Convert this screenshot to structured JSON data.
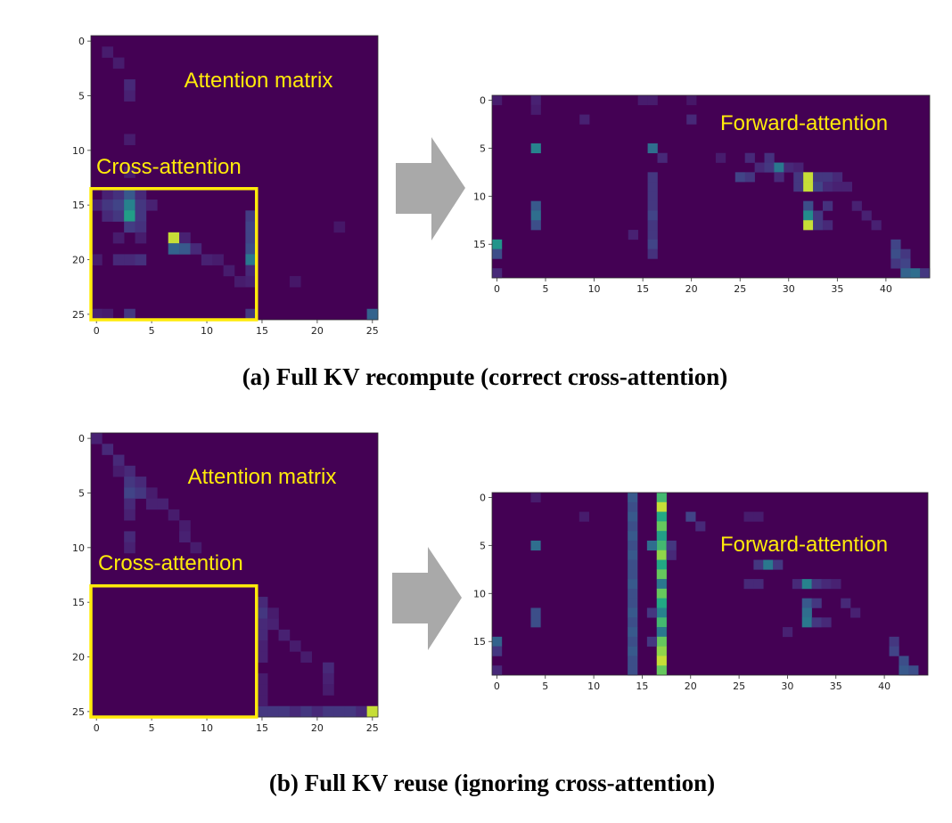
{
  "colors": {
    "background": "#440154",
    "highlight_box": "#ffeb0a",
    "overlay_text": "#ffeb0a",
    "arrow": "#a9a9a9",
    "colormap": "viridis"
  },
  "chart_data": [
    {
      "id": "a-attention-matrix",
      "type": "heatmap",
      "label": "Attention matrix",
      "box_label": "Cross-attention",
      "rows": 26,
      "cols": 26,
      "xticks": [
        0,
        5,
        10,
        15,
        20,
        25
      ],
      "yticks": [
        0,
        5,
        10,
        15,
        20,
        25
      ],
      "box": {
        "x0": 0,
        "x1": 14,
        "y0": 14,
        "y1": 25
      },
      "cells": [
        [
          1,
          1,
          0.1
        ],
        [
          2,
          2,
          0.1
        ],
        [
          3,
          4,
          0.15
        ],
        [
          3,
          5,
          0.12
        ],
        [
          3,
          9,
          0.1
        ],
        [
          3,
          12,
          0.1
        ],
        [
          1,
          14,
          0.12
        ],
        [
          2,
          14,
          0.18
        ],
        [
          3,
          14,
          0.35
        ],
        [
          4,
          14,
          0.15
        ],
        [
          0,
          15,
          0.12
        ],
        [
          1,
          15,
          0.2
        ],
        [
          2,
          15,
          0.25
        ],
        [
          3,
          15,
          0.55
        ],
        [
          4,
          15,
          0.2
        ],
        [
          5,
          15,
          0.12
        ],
        [
          1,
          16,
          0.15
        ],
        [
          2,
          16,
          0.2
        ],
        [
          3,
          16,
          0.7
        ],
        [
          4,
          16,
          0.2
        ],
        [
          3,
          17,
          0.22
        ],
        [
          4,
          17,
          0.18
        ],
        [
          2,
          18,
          0.1
        ],
        [
          4,
          18,
          0.1
        ],
        [
          7,
          18,
          0.95
        ],
        [
          8,
          18,
          0.12
        ],
        [
          14,
          18,
          0.25
        ],
        [
          7,
          19,
          0.4
        ],
        [
          8,
          19,
          0.35
        ],
        [
          9,
          19,
          0.15
        ],
        [
          14,
          19,
          0.3
        ],
        [
          0,
          20,
          0.1
        ],
        [
          2,
          20,
          0.15
        ],
        [
          3,
          20,
          0.15
        ],
        [
          4,
          20,
          0.18
        ],
        [
          10,
          20,
          0.12
        ],
        [
          11,
          20,
          0.1
        ],
        [
          14,
          20,
          0.5
        ],
        [
          12,
          21,
          0.1
        ],
        [
          14,
          21,
          0.15
        ],
        [
          13,
          22,
          0.1
        ],
        [
          14,
          22,
          0.12
        ],
        [
          0,
          25,
          0.12
        ],
        [
          1,
          25,
          0.1
        ],
        [
          3,
          25,
          0.2
        ],
        [
          14,
          25,
          0.2
        ],
        [
          25,
          25,
          0.4
        ],
        [
          14,
          16,
          0.22
        ],
        [
          14,
          17,
          0.25
        ],
        [
          22,
          17,
          0.08
        ],
        [
          18,
          22,
          0.08
        ]
      ]
    },
    {
      "id": "a-forward-attention",
      "type": "heatmap",
      "label": "Forward-attention",
      "rows": 19,
      "cols": 45,
      "xticks": [
        0,
        5,
        10,
        15,
        20,
        25,
        30,
        35,
        40
      ],
      "yticks": [
        0,
        5,
        10,
        15
      ],
      "cells": [
        [
          0,
          0,
          0.1
        ],
        [
          4,
          0,
          0.12
        ],
        [
          15,
          0,
          0.1
        ],
        [
          16,
          0,
          0.1
        ],
        [
          20,
          0,
          0.08
        ],
        [
          4,
          1,
          0.1
        ],
        [
          9,
          2,
          0.12
        ],
        [
          20,
          2,
          0.15
        ],
        [
          4,
          5,
          0.55
        ],
        [
          16,
          5,
          0.45
        ],
        [
          17,
          6,
          0.15
        ],
        [
          23,
          6,
          0.1
        ],
        [
          26,
          6,
          0.15
        ],
        [
          28,
          6,
          0.18
        ],
        [
          27,
          7,
          0.15
        ],
        [
          28,
          7,
          0.2
        ],
        [
          29,
          7,
          0.5
        ],
        [
          30,
          7,
          0.15
        ],
        [
          31,
          7,
          0.12
        ],
        [
          16,
          8,
          0.2
        ],
        [
          25,
          8,
          0.25
        ],
        [
          26,
          8,
          0.2
        ],
        [
          29,
          8,
          0.15
        ],
        [
          31,
          8,
          0.2
        ],
        [
          32,
          8,
          0.95
        ],
        [
          33,
          8,
          0.2
        ],
        [
          34,
          8,
          0.2
        ],
        [
          35,
          8,
          0.15
        ],
        [
          16,
          9,
          0.2
        ],
        [
          31,
          9,
          0.2
        ],
        [
          32,
          9,
          0.95
        ],
        [
          33,
          9,
          0.25
        ],
        [
          34,
          9,
          0.15
        ],
        [
          35,
          9,
          0.12
        ],
        [
          36,
          9,
          0.12
        ],
        [
          16,
          10,
          0.2
        ],
        [
          4,
          11,
          0.35
        ],
        [
          16,
          11,
          0.2
        ],
        [
          32,
          11,
          0.3
        ],
        [
          34,
          11,
          0.18
        ],
        [
          37,
          11,
          0.12
        ],
        [
          4,
          12,
          0.45
        ],
        [
          16,
          12,
          0.25
        ],
        [
          32,
          12,
          0.6
        ],
        [
          33,
          12,
          0.2
        ],
        [
          38,
          12,
          0.12
        ],
        [
          4,
          13,
          0.3
        ],
        [
          16,
          13,
          0.2
        ],
        [
          32,
          13,
          0.95
        ],
        [
          33,
          13,
          0.2
        ],
        [
          34,
          13,
          0.15
        ],
        [
          39,
          13,
          0.12
        ],
        [
          14,
          14,
          0.12
        ],
        [
          16,
          14,
          0.2
        ],
        [
          0,
          15,
          0.65
        ],
        [
          16,
          15,
          0.25
        ],
        [
          41,
          15,
          0.25
        ],
        [
          0,
          16,
          0.3
        ],
        [
          16,
          16,
          0.18
        ],
        [
          41,
          16,
          0.3
        ],
        [
          42,
          16,
          0.2
        ],
        [
          41,
          17,
          0.2
        ],
        [
          42,
          17,
          0.25
        ],
        [
          43,
          18,
          0.45
        ],
        [
          42,
          18,
          0.4
        ],
        [
          44,
          18,
          0.2
        ],
        [
          0,
          18,
          0.15
        ]
      ]
    },
    {
      "id": "b-attention-matrix",
      "type": "heatmap",
      "label": "Attention matrix",
      "box_label": "Cross-attention",
      "rows": 26,
      "cols": 26,
      "xticks": [
        0,
        5,
        10,
        15,
        20,
        25
      ],
      "yticks": [
        0,
        5,
        10,
        15,
        20,
        25
      ],
      "box": {
        "x0": 0,
        "x1": 14,
        "y0": 14,
        "y1": 25
      },
      "cells": [
        [
          0,
          0,
          0.12
        ],
        [
          1,
          1,
          0.15
        ],
        [
          2,
          2,
          0.15
        ],
        [
          3,
          3,
          0.15
        ],
        [
          2,
          3,
          0.1
        ],
        [
          3,
          4,
          0.2
        ],
        [
          4,
          4,
          0.15
        ],
        [
          3,
          5,
          0.25
        ],
        [
          4,
          5,
          0.2
        ],
        [
          5,
          5,
          0.1
        ],
        [
          3,
          6,
          0.15
        ],
        [
          5,
          6,
          0.12
        ],
        [
          6,
          6,
          0.12
        ],
        [
          3,
          7,
          0.12
        ],
        [
          7,
          7,
          0.1
        ],
        [
          8,
          8,
          0.1
        ],
        [
          3,
          9,
          0.15
        ],
        [
          8,
          9,
          0.12
        ],
        [
          3,
          10,
          0.12
        ],
        [
          9,
          10,
          0.1
        ],
        [
          15,
          15,
          0.15
        ],
        [
          15,
          16,
          0.2
        ],
        [
          16,
          16,
          0.1
        ],
        [
          15,
          17,
          0.15
        ],
        [
          16,
          17,
          0.12
        ],
        [
          15,
          18,
          0.15
        ],
        [
          17,
          18,
          0.12
        ],
        [
          15,
          19,
          0.12
        ],
        [
          18,
          19,
          0.1
        ],
        [
          15,
          20,
          0.12
        ],
        [
          19,
          20,
          0.1
        ],
        [
          21,
          21,
          0.15
        ],
        [
          21,
          22,
          0.12
        ],
        [
          21,
          23,
          0.1
        ],
        [
          15,
          25,
          0.2
        ],
        [
          16,
          25,
          0.2
        ],
        [
          17,
          25,
          0.2
        ],
        [
          18,
          25,
          0.15
        ],
        [
          19,
          25,
          0.2
        ],
        [
          20,
          25,
          0.15
        ],
        [
          21,
          25,
          0.2
        ],
        [
          22,
          25,
          0.2
        ],
        [
          23,
          25,
          0.2
        ],
        [
          24,
          25,
          0.15
        ],
        [
          25,
          25,
          0.95
        ],
        [
          15,
          22,
          0.1
        ],
        [
          15,
          23,
          0.1
        ],
        [
          15,
          24,
          0.1
        ]
      ]
    },
    {
      "id": "b-forward-attention",
      "type": "heatmap",
      "label": "Forward-attention",
      "rows": 19,
      "cols": 45,
      "xticks": [
        0,
        5,
        10,
        15,
        20,
        25,
        30,
        35,
        40
      ],
      "yticks": [
        0,
        5,
        10,
        15
      ],
      "cells": [
        [
          14,
          0,
          0.35
        ],
        [
          14,
          1,
          0.3
        ],
        [
          14,
          2,
          0.35
        ],
        [
          14,
          3,
          0.3
        ],
        [
          14,
          4,
          0.35
        ],
        [
          14,
          5,
          0.3
        ],
        [
          14,
          6,
          0.35
        ],
        [
          14,
          7,
          0.3
        ],
        [
          14,
          8,
          0.3
        ],
        [
          14,
          9,
          0.35
        ],
        [
          14,
          10,
          0.3
        ],
        [
          14,
          11,
          0.3
        ],
        [
          14,
          12,
          0.35
        ],
        [
          14,
          13,
          0.3
        ],
        [
          14,
          14,
          0.35
        ],
        [
          14,
          15,
          0.3
        ],
        [
          14,
          16,
          0.35
        ],
        [
          14,
          17,
          0.3
        ],
        [
          14,
          18,
          0.3
        ],
        [
          17,
          0,
          0.8
        ],
        [
          17,
          1,
          0.95
        ],
        [
          17,
          2,
          0.75
        ],
        [
          17,
          3,
          0.85
        ],
        [
          17,
          4,
          0.7
        ],
        [
          17,
          5,
          0.8
        ],
        [
          17,
          6,
          0.9
        ],
        [
          17,
          7,
          0.75
        ],
        [
          17,
          8,
          0.85
        ],
        [
          17,
          9,
          0.5
        ],
        [
          17,
          10,
          0.85
        ],
        [
          17,
          11,
          0.75
        ],
        [
          17,
          12,
          0.55
        ],
        [
          17,
          13,
          0.8
        ],
        [
          17,
          14,
          0.5
        ],
        [
          17,
          15,
          0.85
        ],
        [
          17,
          16,
          0.9
        ],
        [
          17,
          17,
          0.95
        ],
        [
          17,
          18,
          0.85
        ],
        [
          4,
          0,
          0.1
        ],
        [
          9,
          2,
          0.1
        ],
        [
          20,
          2,
          0.25
        ],
        [
          21,
          3,
          0.15
        ],
        [
          26,
          2,
          0.1
        ],
        [
          27,
          2,
          0.1
        ],
        [
          4,
          5,
          0.45
        ],
        [
          16,
          5,
          0.45
        ],
        [
          18,
          5,
          0.2
        ],
        [
          18,
          6,
          0.15
        ],
        [
          27,
          7,
          0.2
        ],
        [
          28,
          7,
          0.5
        ],
        [
          29,
          7,
          0.2
        ],
        [
          26,
          9,
          0.15
        ],
        [
          27,
          9,
          0.15
        ],
        [
          31,
          9,
          0.15
        ],
        [
          32,
          9,
          0.55
        ],
        [
          33,
          9,
          0.2
        ],
        [
          34,
          9,
          0.15
        ],
        [
          35,
          9,
          0.12
        ],
        [
          4,
          12,
          0.3
        ],
        [
          4,
          13,
          0.3
        ],
        [
          16,
          12,
          0.2
        ],
        [
          32,
          11,
          0.35
        ],
        [
          33,
          11,
          0.2
        ],
        [
          36,
          11,
          0.15
        ],
        [
          37,
          12,
          0.12
        ],
        [
          32,
          12,
          0.45
        ],
        [
          32,
          13,
          0.5
        ],
        [
          33,
          13,
          0.2
        ],
        [
          34,
          13,
          0.15
        ],
        [
          30,
          14,
          0.12
        ],
        [
          0,
          15,
          0.4
        ],
        [
          0,
          16,
          0.2
        ],
        [
          16,
          15,
          0.2
        ],
        [
          41,
          15,
          0.2
        ],
        [
          41,
          16,
          0.25
        ],
        [
          42,
          17,
          0.3
        ],
        [
          42,
          18,
          0.35
        ],
        [
          43,
          18,
          0.3
        ],
        [
          0,
          18,
          0.15
        ]
      ]
    }
  ],
  "captions": {
    "a": "(a) Full KV recompute (correct cross-attention)",
    "b": "(b) Full KV reuse (ignoring cross-attention)"
  }
}
